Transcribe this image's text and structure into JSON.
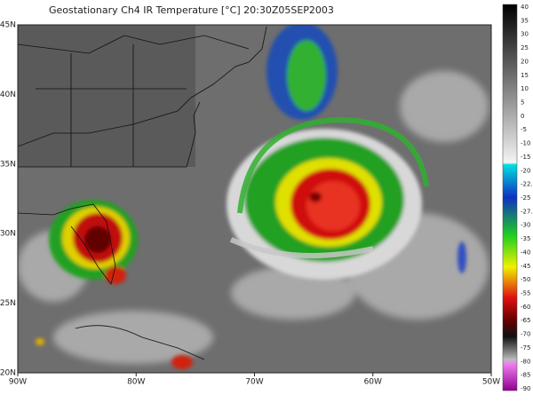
{
  "title": "Geostationary Ch4 IR Temperature [°C] 20:30Z05SEP2003",
  "map": {
    "lon_labels": [
      "90W",
      "80W",
      "70W",
      "60W",
      "50W"
    ],
    "lat_labels": [
      "45N",
      "40N",
      "35N",
      "30N",
      "25N",
      "20N"
    ]
  },
  "colorbar": {
    "ticks": [
      "40",
      "35",
      "30",
      "25",
      "20",
      "15",
      "10",
      "5",
      "0",
      "-5",
      "-10",
      "-15",
      "-20",
      "-22.5",
      "-25",
      "-27.5",
      "-30",
      "-35",
      "-40",
      "-45",
      "-50",
      "-55",
      "-60",
      "-65",
      "-70",
      "-75",
      "-80",
      "-85",
      "-90"
    ]
  }
}
